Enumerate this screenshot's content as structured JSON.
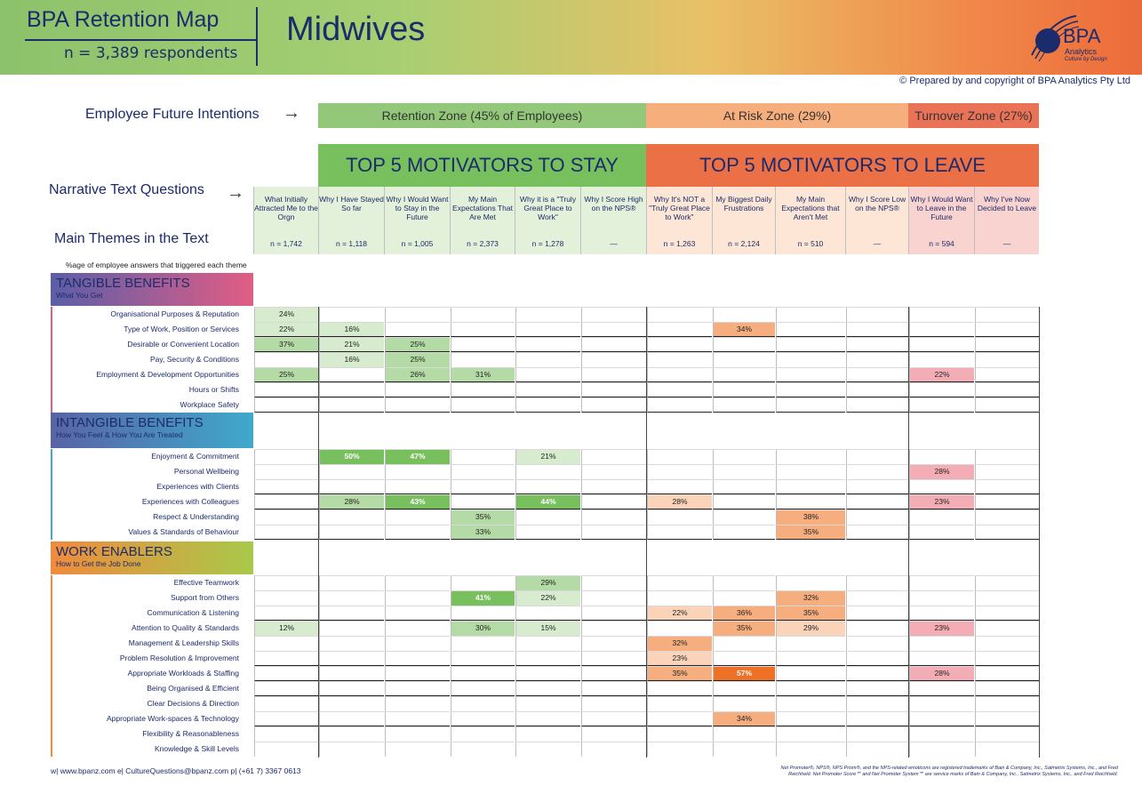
{
  "header": {
    "brand_title": "BPA Retention Map",
    "respondents": "n = 3,389 respondents",
    "page_title": "Midwives",
    "logo_text": "BPA",
    "logo_sub1": "Analytics",
    "logo_sub2": "Culture by Design",
    "copyright": "© Prepared by and copyright of BPA Analytics Pty Ltd"
  },
  "labels": {
    "future_intentions": "Employee Future Intentions",
    "narrative_questions": "Narrative Text Questions",
    "main_themes": "Main Themes in the Text",
    "pct_note": "%age of employee answers that triggered each theme",
    "arrow": "→"
  },
  "zones": [
    {
      "label": "Retention Zone (45% of Employees)",
      "share_pct": 45,
      "color": "#93c87a"
    },
    {
      "label": "At Risk Zone (29%)",
      "share_pct": 29,
      "color": "#f7ae7d"
    },
    {
      "label": "Turnover Zone (27%)",
      "share_pct": 27,
      "color": "#ea7357"
    }
  ],
  "top5": [
    {
      "label": "TOP 5 MOTIVATORS TO STAY",
      "color": "#78bf5e"
    },
    {
      "label": "TOP 5 MOTIVATORS TO LEAVE",
      "color": "#ec7046"
    }
  ],
  "colors": {
    "stay_light": "#d7ecce",
    "stay_mid": "#b4dba5",
    "stay_dark": "#78bf5e",
    "leave_light": "#fbd3b8",
    "leave_mid": "#f6ae7e",
    "leave_dark": "#ee7126",
    "turnover_pink": "#f3aeb5",
    "head_stay_bg": "#e3f1db",
    "head_leave_bg": "#fde6d6",
    "head_turn_bg": "#f8d3cf"
  },
  "chart_data": {
    "type": "heatmap",
    "title": "BPA Retention Map",
    "subtitle": "Midwives",
    "value_unit": "%",
    "columns": [
      {
        "question": "What Initially Attracted Me to the Orgn",
        "n": "n = 1,742",
        "group": "stay"
      },
      {
        "question": "Why I Have Stayed So far",
        "n": "n = 1,118",
        "group": "stay"
      },
      {
        "question": "Why I Would Want to Stay in the Future",
        "n": "n = 1,005",
        "group": "stay"
      },
      {
        "question": "My Main Expectations That Are Met",
        "n": "n = 2,373",
        "group": "stay"
      },
      {
        "question": "Why it is a \"Truly Great Place to Work\"",
        "n": "n = 1,278",
        "group": "stay"
      },
      {
        "question": "Why I Score High on the NPS®",
        "n": "—",
        "group": "stay"
      },
      {
        "question": "Why It's NOT a \"Truly Great Place to Work\"",
        "n": "n = 1,263",
        "group": "leave"
      },
      {
        "question": "My Biggest Daily Frustrations",
        "n": "n = 2,124",
        "group": "leave"
      },
      {
        "question": "My Main Expectations that Aren't Met",
        "n": "n = 510",
        "group": "leave"
      },
      {
        "question": "Why I Score Low on the NPS®",
        "n": "—",
        "group": "leave"
      },
      {
        "question": "Why I Would Want to Leave in the Future",
        "n": "n = 594",
        "group": "turnover"
      },
      {
        "question": "Why I've Now Decided to Leave",
        "n": "—",
        "group": "turnover"
      }
    ],
    "sections": [
      {
        "title": "TANGIBLE BENEFITS",
        "subtitle": "What You Get",
        "color_from": "#5b5ea8",
        "color_to": "#e25d84",
        "rows": [
          {
            "theme": "Organisational Purposes & Reputation",
            "values": [
              24,
              null,
              null,
              null,
              null,
              null,
              null,
              null,
              null,
              null,
              null,
              null
            ]
          },
          {
            "theme": "Type of Work, Position or Services",
            "values": [
              22,
              16,
              null,
              null,
              null,
              null,
              null,
              34,
              null,
              null,
              null,
              null
            ]
          },
          {
            "theme": "Desirable or Convenient Location",
            "values": [
              37,
              21,
              25,
              null,
              null,
              null,
              null,
              null,
              null,
              null,
              null,
              null
            ]
          },
          {
            "theme": "Pay, Security & Conditions",
            "values": [
              null,
              16,
              25,
              null,
              null,
              null,
              null,
              null,
              null,
              null,
              null,
              null
            ]
          },
          {
            "theme": "Employment & Development Opportunities",
            "values": [
              25,
              null,
              26,
              31,
              null,
              null,
              null,
              null,
              null,
              null,
              22,
              null
            ]
          },
          {
            "theme": "Hours or Shifts",
            "values": [
              null,
              null,
              null,
              null,
              null,
              null,
              null,
              null,
              null,
              null,
              null,
              null
            ]
          },
          {
            "theme": "Workplace Safety",
            "values": [
              null,
              null,
              null,
              null,
              null,
              null,
              null,
              null,
              null,
              null,
              null,
              null
            ]
          }
        ]
      },
      {
        "title": "INTANGIBLE BENEFITS",
        "subtitle": "How You Feel & How You Are Treated",
        "color_from": "#5963a6",
        "color_to": "#3fa9cc",
        "rows": [
          {
            "theme": "Enjoyment & Commitment",
            "values": [
              null,
              50,
              47,
              null,
              21,
              null,
              null,
              null,
              null,
              null,
              null,
              null
            ]
          },
          {
            "theme": "Personal Wellbeing",
            "values": [
              null,
              null,
              null,
              null,
              null,
              null,
              null,
              null,
              null,
              null,
              28,
              null
            ]
          },
          {
            "theme": "Experiences with Clients",
            "values": [
              null,
              null,
              null,
              null,
              null,
              null,
              null,
              null,
              null,
              null,
              null,
              null
            ]
          },
          {
            "theme": "Experiences with Colleagues",
            "values": [
              null,
              28,
              43,
              null,
              44,
              null,
              28,
              null,
              null,
              null,
              23,
              null
            ]
          },
          {
            "theme": "Respect & Understanding",
            "values": [
              null,
              null,
              null,
              35,
              null,
              null,
              null,
              null,
              38,
              null,
              null,
              null
            ]
          },
          {
            "theme": "Values & Standards of Behaviour",
            "values": [
              null,
              null,
              null,
              33,
              null,
              null,
              null,
              null,
              35,
              null,
              null,
              null
            ]
          }
        ]
      },
      {
        "title": "WORK ENABLERS",
        "subtitle": "How to Get the Job Done",
        "color_from": "#f08a3c",
        "color_to": "#a8c94a",
        "rows": [
          {
            "theme": "Effective Teamwork",
            "values": [
              null,
              null,
              null,
              null,
              29,
              null,
              null,
              null,
              null,
              null,
              null,
              null
            ]
          },
          {
            "theme": "Support from Others",
            "values": [
              null,
              null,
              null,
              41,
              22,
              null,
              null,
              null,
              32,
              null,
              null,
              null
            ]
          },
          {
            "theme": "Communication & Listening",
            "values": [
              null,
              null,
              null,
              null,
              null,
              null,
              22,
              36,
              35,
              null,
              null,
              null
            ]
          },
          {
            "theme": "Attention to Quality & Standards",
            "values": [
              12,
              null,
              null,
              30,
              15,
              null,
              null,
              35,
              29,
              null,
              23,
              null
            ]
          },
          {
            "theme": "Management & Leadership Skills",
            "values": [
              null,
              null,
              null,
              null,
              null,
              null,
              32,
              null,
              null,
              null,
              null,
              null
            ]
          },
          {
            "theme": "Problem Resolution & Improvement",
            "values": [
              null,
              null,
              null,
              null,
              null,
              null,
              23,
              null,
              null,
              null,
              null,
              null
            ]
          },
          {
            "theme": "Appropriate Workloads & Staffing",
            "values": [
              null,
              null,
              null,
              null,
              null,
              null,
              35,
              57,
              null,
              null,
              28,
              null
            ]
          },
          {
            "theme": "Being Organised & Efficient",
            "values": [
              null,
              null,
              null,
              null,
              null,
              null,
              null,
              null,
              null,
              null,
              null,
              null
            ]
          },
          {
            "theme": "Clear Decisions & Direction",
            "values": [
              null,
              null,
              null,
              null,
              null,
              null,
              null,
              null,
              null,
              null,
              null,
              null
            ]
          },
          {
            "theme": "Appropriate Work-spaces & Technology",
            "values": [
              null,
              null,
              null,
              null,
              null,
              null,
              null,
              34,
              null,
              null,
              null,
              null
            ]
          },
          {
            "theme": "Flexibility & Reasonableness",
            "values": [
              null,
              null,
              null,
              null,
              null,
              null,
              null,
              null,
              null,
              null,
              null,
              null
            ]
          },
          {
            "theme": "Knowledge & Skill Levels",
            "values": [
              null,
              null,
              null,
              null,
              null,
              null,
              null,
              null,
              null,
              null,
              null,
              null
            ]
          }
        ]
      }
    ]
  },
  "footer": {
    "contacts": "w|  www.bpanz.com     e|  CultureQuestions@bpanz.com     p|  (+61 7) 3367 0613",
    "trademark": "Net Promoter®, NPS®, NPS Prism®, and the NPS-related emoticons are registered trademarks of Bain & Company, Inc., Satmetrix Systems, Inc., and Fred Reichheld. Net Promoter Score℠ and Net Promoter System℠ are service marks of Bain & Company, Inc., Satmetrix Systems, Inc., and Fred Reichheld."
  }
}
